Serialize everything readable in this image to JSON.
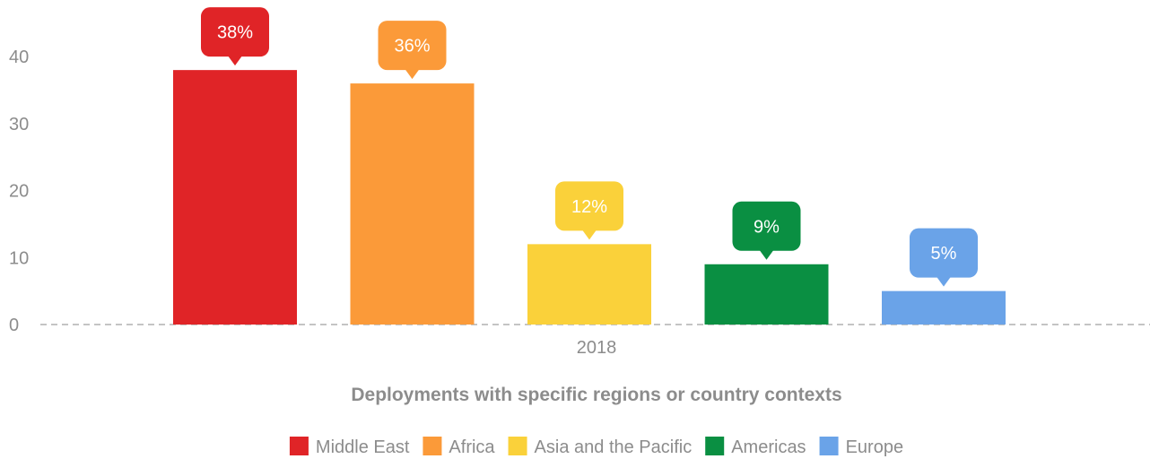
{
  "chart_data": {
    "type": "bar",
    "x_category": "2018",
    "xlabel": "Deployments with specific regions or country contexts",
    "ylabel": "",
    "ylim": [
      0,
      45
    ],
    "yticks": [
      0,
      10,
      20,
      30,
      40
    ],
    "grid": false,
    "baseline_style": "dashed",
    "legend_position": "bottom",
    "series": [
      {
        "name": "Middle East",
        "value": 38,
        "label": "38%",
        "color": "#e02427"
      },
      {
        "name": "Africa",
        "value": 36,
        "label": "36%",
        "color": "#fb9a39"
      },
      {
        "name": "Asia and the Pacific",
        "value": 12,
        "label": "12%",
        "color": "#fad13a"
      },
      {
        "name": "Americas",
        "value": 9,
        "label": "9%",
        "color": "#0a8f42"
      },
      {
        "name": "Europe",
        "value": 5,
        "label": "5%",
        "color": "#6aa3e8"
      }
    ]
  }
}
